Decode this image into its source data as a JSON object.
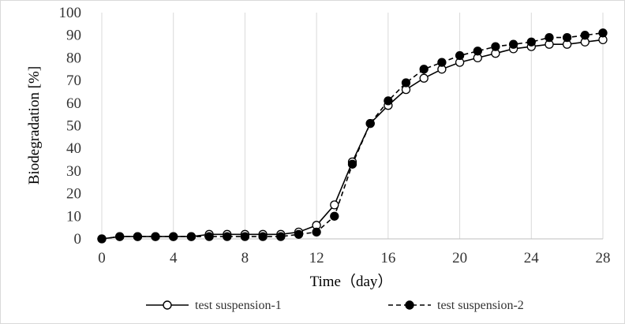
{
  "chart_data": {
    "type": "line",
    "title": "",
    "xlabel": "Time（day）",
    "ylabel": "Biodegradation [%]",
    "xlim": [
      0,
      28
    ],
    "ylim": [
      0,
      100
    ],
    "x_ticks": [
      0,
      4,
      8,
      12,
      16,
      20,
      24,
      28
    ],
    "y_ticks": [
      0,
      10,
      20,
      30,
      40,
      50,
      60,
      70,
      80,
      90,
      100
    ],
    "grid": "vertical",
    "legend_position": "bottom",
    "series": [
      {
        "name": "test suspension-1",
        "marker": "open-circle",
        "line_style": "solid",
        "x": [
          0,
          1,
          2,
          3,
          4,
          5,
          6,
          7,
          8,
          9,
          10,
          11,
          12,
          13,
          14,
          15,
          16,
          17,
          18,
          19,
          20,
          21,
          22,
          23,
          24,
          25,
          26,
          27,
          28
        ],
        "y": [
          0,
          1,
          1,
          1,
          1,
          1,
          2,
          2,
          2,
          2,
          2,
          3,
          6,
          15,
          34,
          51,
          59,
          66,
          71,
          75,
          78,
          80,
          82,
          84,
          85,
          86,
          86,
          87,
          88
        ]
      },
      {
        "name": "test suspension-2",
        "marker": "filled-circle",
        "line_style": "dashed",
        "x": [
          0,
          1,
          2,
          3,
          4,
          5,
          6,
          7,
          8,
          9,
          10,
          11,
          12,
          13,
          14,
          15,
          16,
          17,
          18,
          19,
          20,
          21,
          22,
          23,
          24,
          25,
          26,
          27,
          28
        ],
        "y": [
          0,
          1,
          1,
          1,
          1,
          1,
          1,
          1,
          1,
          1,
          1,
          2,
          3,
          10,
          33,
          51,
          61,
          69,
          75,
          78,
          81,
          83,
          85,
          86,
          87,
          89,
          89,
          90,
          91
        ]
      }
    ],
    "colors": {
      "line": "#000000",
      "grid": "#d9d9d9",
      "tick_text": "#333333"
    }
  }
}
